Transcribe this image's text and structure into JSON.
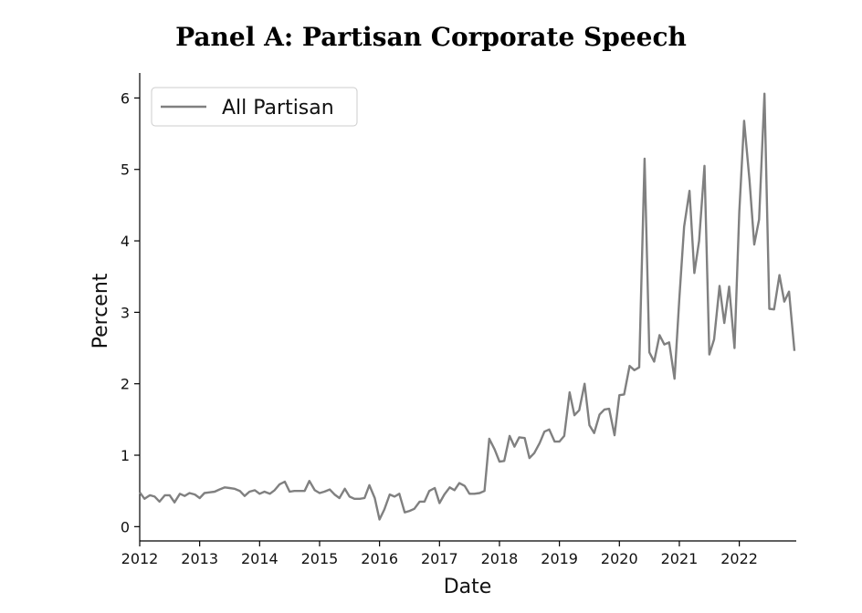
{
  "chart_data": {
    "type": "line",
    "title": "Panel A: Partisan Corporate Speech",
    "xlabel": "Date",
    "ylabel": "Percent",
    "xlim": [
      2012.0,
      2022.95
    ],
    "ylim": [
      -0.2,
      6.35
    ],
    "x_ticks": [
      2012,
      2013,
      2014,
      2015,
      2016,
      2017,
      2018,
      2019,
      2020,
      2021,
      2022
    ],
    "y_ticks": [
      0,
      1,
      2,
      3,
      4,
      5,
      6
    ],
    "legend": {
      "position": "top-left",
      "entries": [
        "All Partisan"
      ]
    },
    "grid": false,
    "series_color": "#808080",
    "series": [
      {
        "name": "All Partisan",
        "points": [
          [
            2012.0,
            0.48
          ],
          [
            2012.08,
            0.39
          ],
          [
            2012.17,
            0.44
          ],
          [
            2012.25,
            0.42
          ],
          [
            2012.33,
            0.35
          ],
          [
            2012.42,
            0.44
          ],
          [
            2012.5,
            0.44
          ],
          [
            2012.58,
            0.34
          ],
          [
            2012.67,
            0.46
          ],
          [
            2012.75,
            0.43
          ],
          [
            2012.83,
            0.47
          ],
          [
            2012.92,
            0.45
          ],
          [
            2013.0,
            0.4
          ],
          [
            2013.08,
            0.47
          ],
          [
            2013.17,
            0.48
          ],
          [
            2013.25,
            0.49
          ],
          [
            2013.33,
            0.52
          ],
          [
            2013.42,
            0.55
          ],
          [
            2013.5,
            0.54
          ],
          [
            2013.58,
            0.53
          ],
          [
            2013.67,
            0.5
          ],
          [
            2013.75,
            0.43
          ],
          [
            2013.83,
            0.49
          ],
          [
            2013.92,
            0.51
          ],
          [
            2014.0,
            0.46
          ],
          [
            2014.08,
            0.49
          ],
          [
            2014.17,
            0.46
          ],
          [
            2014.25,
            0.51
          ],
          [
            2014.33,
            0.59
          ],
          [
            2014.42,
            0.63
          ],
          [
            2014.5,
            0.49
          ],
          [
            2014.58,
            0.5
          ],
          [
            2014.67,
            0.5
          ],
          [
            2014.75,
            0.5
          ],
          [
            2014.83,
            0.64
          ],
          [
            2014.92,
            0.51
          ],
          [
            2015.0,
            0.47
          ],
          [
            2015.08,
            0.49
          ],
          [
            2015.17,
            0.52
          ],
          [
            2015.25,
            0.45
          ],
          [
            2015.33,
            0.4
          ],
          [
            2015.42,
            0.53
          ],
          [
            2015.5,
            0.42
          ],
          [
            2015.58,
            0.39
          ],
          [
            2015.67,
            0.39
          ],
          [
            2015.75,
            0.4
          ],
          [
            2015.83,
            0.58
          ],
          [
            2015.92,
            0.4
          ],
          [
            2016.0,
            0.1
          ],
          [
            2016.08,
            0.24
          ],
          [
            2016.17,
            0.45
          ],
          [
            2016.25,
            0.42
          ],
          [
            2016.33,
            0.46
          ],
          [
            2016.42,
            0.2
          ],
          [
            2016.5,
            0.22
          ],
          [
            2016.58,
            0.25
          ],
          [
            2016.67,
            0.35
          ],
          [
            2016.75,
            0.35
          ],
          [
            2016.83,
            0.5
          ],
          [
            2016.92,
            0.54
          ],
          [
            2017.0,
            0.33
          ],
          [
            2017.08,
            0.45
          ],
          [
            2017.17,
            0.55
          ],
          [
            2017.25,
            0.51
          ],
          [
            2017.33,
            0.61
          ],
          [
            2017.42,
            0.57
          ],
          [
            2017.5,
            0.46
          ],
          [
            2017.58,
            0.46
          ],
          [
            2017.67,
            0.47
          ],
          [
            2017.75,
            0.5
          ],
          [
            2017.83,
            1.23
          ],
          [
            2017.92,
            1.08
          ],
          [
            2018.0,
            0.91
          ],
          [
            2018.08,
            0.92
          ],
          [
            2018.17,
            1.27
          ],
          [
            2018.25,
            1.12
          ],
          [
            2018.33,
            1.25
          ],
          [
            2018.42,
            1.24
          ],
          [
            2018.5,
            0.96
          ],
          [
            2018.58,
            1.03
          ],
          [
            2018.67,
            1.17
          ],
          [
            2018.75,
            1.33
          ],
          [
            2018.83,
            1.36
          ],
          [
            2018.92,
            1.19
          ],
          [
            2019.0,
            1.19
          ],
          [
            2019.08,
            1.27
          ],
          [
            2019.17,
            1.88
          ],
          [
            2019.25,
            1.56
          ],
          [
            2019.33,
            1.63
          ],
          [
            2019.42,
            2.0
          ],
          [
            2019.5,
            1.42
          ],
          [
            2019.58,
            1.31
          ],
          [
            2019.67,
            1.57
          ],
          [
            2019.75,
            1.64
          ],
          [
            2019.83,
            1.65
          ],
          [
            2019.92,
            1.28
          ],
          [
            2020.0,
            1.84
          ],
          [
            2020.08,
            1.85
          ],
          [
            2020.17,
            2.25
          ],
          [
            2020.25,
            2.19
          ],
          [
            2020.33,
            2.23
          ],
          [
            2020.42,
            5.15
          ],
          [
            2020.5,
            2.44
          ],
          [
            2020.58,
            2.31
          ],
          [
            2020.67,
            2.68
          ],
          [
            2020.75,
            2.55
          ],
          [
            2020.83,
            2.58
          ],
          [
            2020.92,
            2.07
          ],
          [
            2021.0,
            3.2
          ],
          [
            2021.08,
            4.2
          ],
          [
            2021.17,
            4.7
          ],
          [
            2021.25,
            3.55
          ],
          [
            2021.33,
            4.0
          ],
          [
            2021.42,
            5.05
          ],
          [
            2021.5,
            2.41
          ],
          [
            2021.58,
            2.62
          ],
          [
            2021.67,
            3.37
          ],
          [
            2021.75,
            2.85
          ],
          [
            2021.83,
            3.36
          ],
          [
            2021.92,
            2.5
          ],
          [
            2022.0,
            4.4
          ],
          [
            2022.08,
            5.68
          ],
          [
            2022.17,
            4.85
          ],
          [
            2022.25,
            3.95
          ],
          [
            2022.33,
            4.3
          ],
          [
            2022.42,
            6.06
          ],
          [
            2022.5,
            3.05
          ],
          [
            2022.58,
            3.04
          ],
          [
            2022.67,
            3.52
          ],
          [
            2022.75,
            3.15
          ],
          [
            2022.83,
            3.29
          ],
          [
            2022.92,
            2.46
          ]
        ]
      }
    ]
  }
}
